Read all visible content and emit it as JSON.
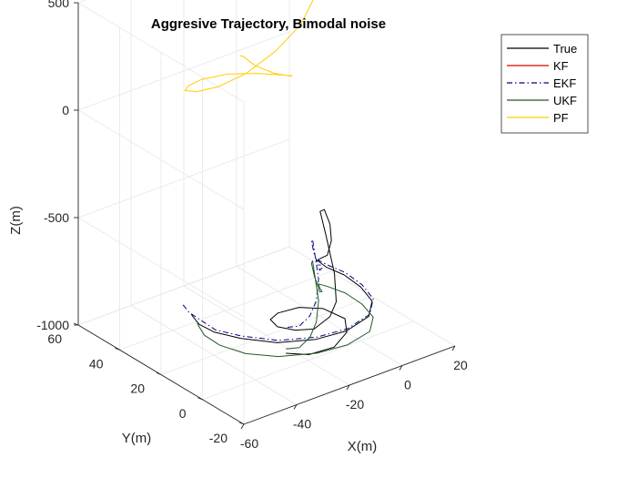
{
  "chart_data": {
    "type": "line",
    "title": "Aggresive Trajectory, Bimodal noise",
    "xlabel": "X(m)",
    "ylabel": "Y(m)",
    "zlabel": "Z(m)",
    "xlim": [
      -60,
      20
    ],
    "ylim": [
      -20,
      60
    ],
    "zlim": [
      -1000,
      500
    ],
    "xticks": [
      -60,
      -40,
      -20,
      0,
      20
    ],
    "yticks": [
      -20,
      0,
      20,
      40,
      60
    ],
    "zticks": [
      -1000,
      -500,
      0,
      500
    ],
    "grid": true,
    "legend_position": "top-right",
    "series": [
      {
        "name": "True",
        "color": "#000000",
        "dash": "solid",
        "points": [
          [
            -36,
            36,
            -920
          ],
          [
            -40,
            30,
            -880
          ],
          [
            -44,
            22,
            -850
          ],
          [
            -46,
            12,
            -820
          ],
          [
            -44,
            2,
            -800
          ],
          [
            -38,
            -8,
            -790
          ],
          [
            -28,
            -14,
            -785
          ],
          [
            -18,
            -16,
            -780
          ],
          [
            -8,
            -14,
            -770
          ],
          [
            -2,
            -8,
            -760
          ],
          [
            0,
            0,
            -750
          ],
          [
            0,
            8,
            -740
          ],
          [
            -2,
            14,
            -730
          ],
          [
            -4,
            16,
            -700
          ],
          [
            -6,
            12,
            -660
          ],
          [
            -8,
            6,
            -600
          ],
          [
            -8,
            4,
            -520
          ],
          [
            -7,
            6,
            -460
          ],
          [
            -6,
            10,
            -420
          ],
          [
            -6,
            12,
            -440
          ],
          [
            -7,
            8,
            -520
          ],
          [
            -10,
            0,
            -640
          ],
          [
            -14,
            -6,
            -720
          ],
          [
            -18,
            -8,
            -760
          ],
          [
            -24,
            -8,
            -790
          ],
          [
            -28,
            -4,
            -800
          ],
          [
            -30,
            2,
            -810
          ],
          [
            -28,
            8,
            -820
          ],
          [
            -22,
            12,
            -840
          ],
          [
            -14,
            12,
            -850
          ],
          [
            -8,
            8,
            -860
          ],
          [
            -6,
            0,
            -870
          ],
          [
            -10,
            -6,
            -880
          ],
          [
            -18,
            -10,
            -890
          ],
          [
            -26,
            -8,
            -900
          ],
          [
            -30,
            -2,
            -910
          ]
        ]
      },
      {
        "name": "KF",
        "color": "#dd0000",
        "dash": "solid",
        "points": []
      },
      {
        "name": "EKF",
        "color": "#00008b",
        "dash": "dashdot",
        "points": [
          [
            -36,
            40,
            -900
          ],
          [
            -40,
            32,
            -870
          ],
          [
            -42,
            24,
            -850
          ],
          [
            -44,
            14,
            -830
          ],
          [
            -42,
            4,
            -810
          ],
          [
            -36,
            -6,
            -800
          ],
          [
            -26,
            -12,
            -795
          ],
          [
            -16,
            -14,
            -790
          ],
          [
            -6,
            -12,
            -780
          ],
          [
            0,
            -6,
            -770
          ],
          [
            2,
            2,
            -760
          ],
          [
            2,
            10,
            -750
          ],
          [
            0,
            16,
            -740
          ],
          [
            -2,
            18,
            -720
          ],
          [
            -6,
            12,
            -690
          ],
          [
            -10,
            6,
            -650
          ],
          [
            -14,
            2,
            -620
          ],
          [
            -16,
            0,
            -580
          ],
          [
            -16,
            2,
            -540
          ],
          [
            -14,
            6,
            -510
          ],
          [
            -12,
            8,
            -520
          ],
          [
            -14,
            4,
            -580
          ],
          [
            -16,
            0,
            -640
          ],
          [
            -20,
            -4,
            -700
          ],
          [
            -24,
            -6,
            -740
          ],
          [
            -28,
            -6,
            -770
          ],
          [
            -30,
            -2,
            -790
          ]
        ]
      },
      {
        "name": "UKF",
        "color": "#1e5a28",
        "dash": "solid",
        "points": [
          [
            -34,
            36,
            -960
          ],
          [
            -38,
            30,
            -930
          ],
          [
            -42,
            22,
            -910
          ],
          [
            -44,
            12,
            -890
          ],
          [
            -42,
            2,
            -880
          ],
          [
            -36,
            -6,
            -875
          ],
          [
            -26,
            -12,
            -870
          ],
          [
            -16,
            -14,
            -865
          ],
          [
            -6,
            -12,
            -860
          ],
          [
            0,
            -6,
            -855
          ],
          [
            2,
            2,
            -850
          ],
          [
            2,
            10,
            -845
          ],
          [
            0,
            16,
            -840
          ],
          [
            -2,
            18,
            -830
          ],
          [
            -6,
            12,
            -800
          ],
          [
            -10,
            6,
            -760
          ],
          [
            -14,
            2,
            -720
          ],
          [
            -16,
            0,
            -680
          ],
          [
            -16,
            2,
            -640
          ],
          [
            -14,
            6,
            -610
          ],
          [
            -12,
            8,
            -620
          ],
          [
            -14,
            4,
            -680
          ],
          [
            -16,
            0,
            -740
          ],
          [
            -20,
            -4,
            -800
          ],
          [
            -24,
            -6,
            -840
          ],
          [
            -28,
            -6,
            -870
          ],
          [
            -30,
            -2,
            -890
          ]
        ]
      },
      {
        "name": "PF",
        "color": "#ffcc00",
        "dash": "solid",
        "points": [
          [
            -8,
            12,
            700
          ],
          [
            -4,
            10,
            710
          ],
          [
            -2,
            6,
            720
          ],
          [
            -4,
            2,
            730
          ],
          [
            -8,
            0,
            740
          ],
          [
            -12,
            2,
            750
          ],
          [
            -14,
            6,
            760
          ],
          [
            -12,
            10,
            770
          ],
          [
            -8,
            12,
            780
          ],
          [
            -4,
            10,
            790
          ],
          [
            -2,
            6,
            800
          ],
          [
            -4,
            2,
            810
          ],
          [
            -8,
            0,
            820
          ],
          [
            -12,
            2,
            830
          ],
          [
            -14,
            6,
            840
          ],
          [
            -12,
            10,
            850
          ],
          [
            -8,
            12,
            860
          ],
          [
            -6,
            10,
            830
          ],
          [
            -8,
            8,
            760
          ],
          [
            -12,
            6,
            640
          ],
          [
            -18,
            6,
            520
          ],
          [
            -26,
            8,
            420
          ],
          [
            -34,
            12,
            330
          ],
          [
            -40,
            18,
            260
          ],
          [
            -42,
            26,
            200
          ],
          [
            -40,
            34,
            150
          ],
          [
            -34,
            40,
            110
          ],
          [
            -26,
            44,
            80
          ],
          [
            -16,
            44,
            60
          ],
          [
            -8,
            40,
            50
          ],
          [
            -4,
            34,
            60
          ],
          [
            -4,
            28,
            90
          ],
          [
            -8,
            24,
            130
          ],
          [
            -14,
            24,
            170
          ],
          [
            -18,
            28,
            200
          ],
          [
            -18,
            34,
            210
          ],
          [
            -16,
            38,
            180
          ]
        ]
      }
    ]
  }
}
